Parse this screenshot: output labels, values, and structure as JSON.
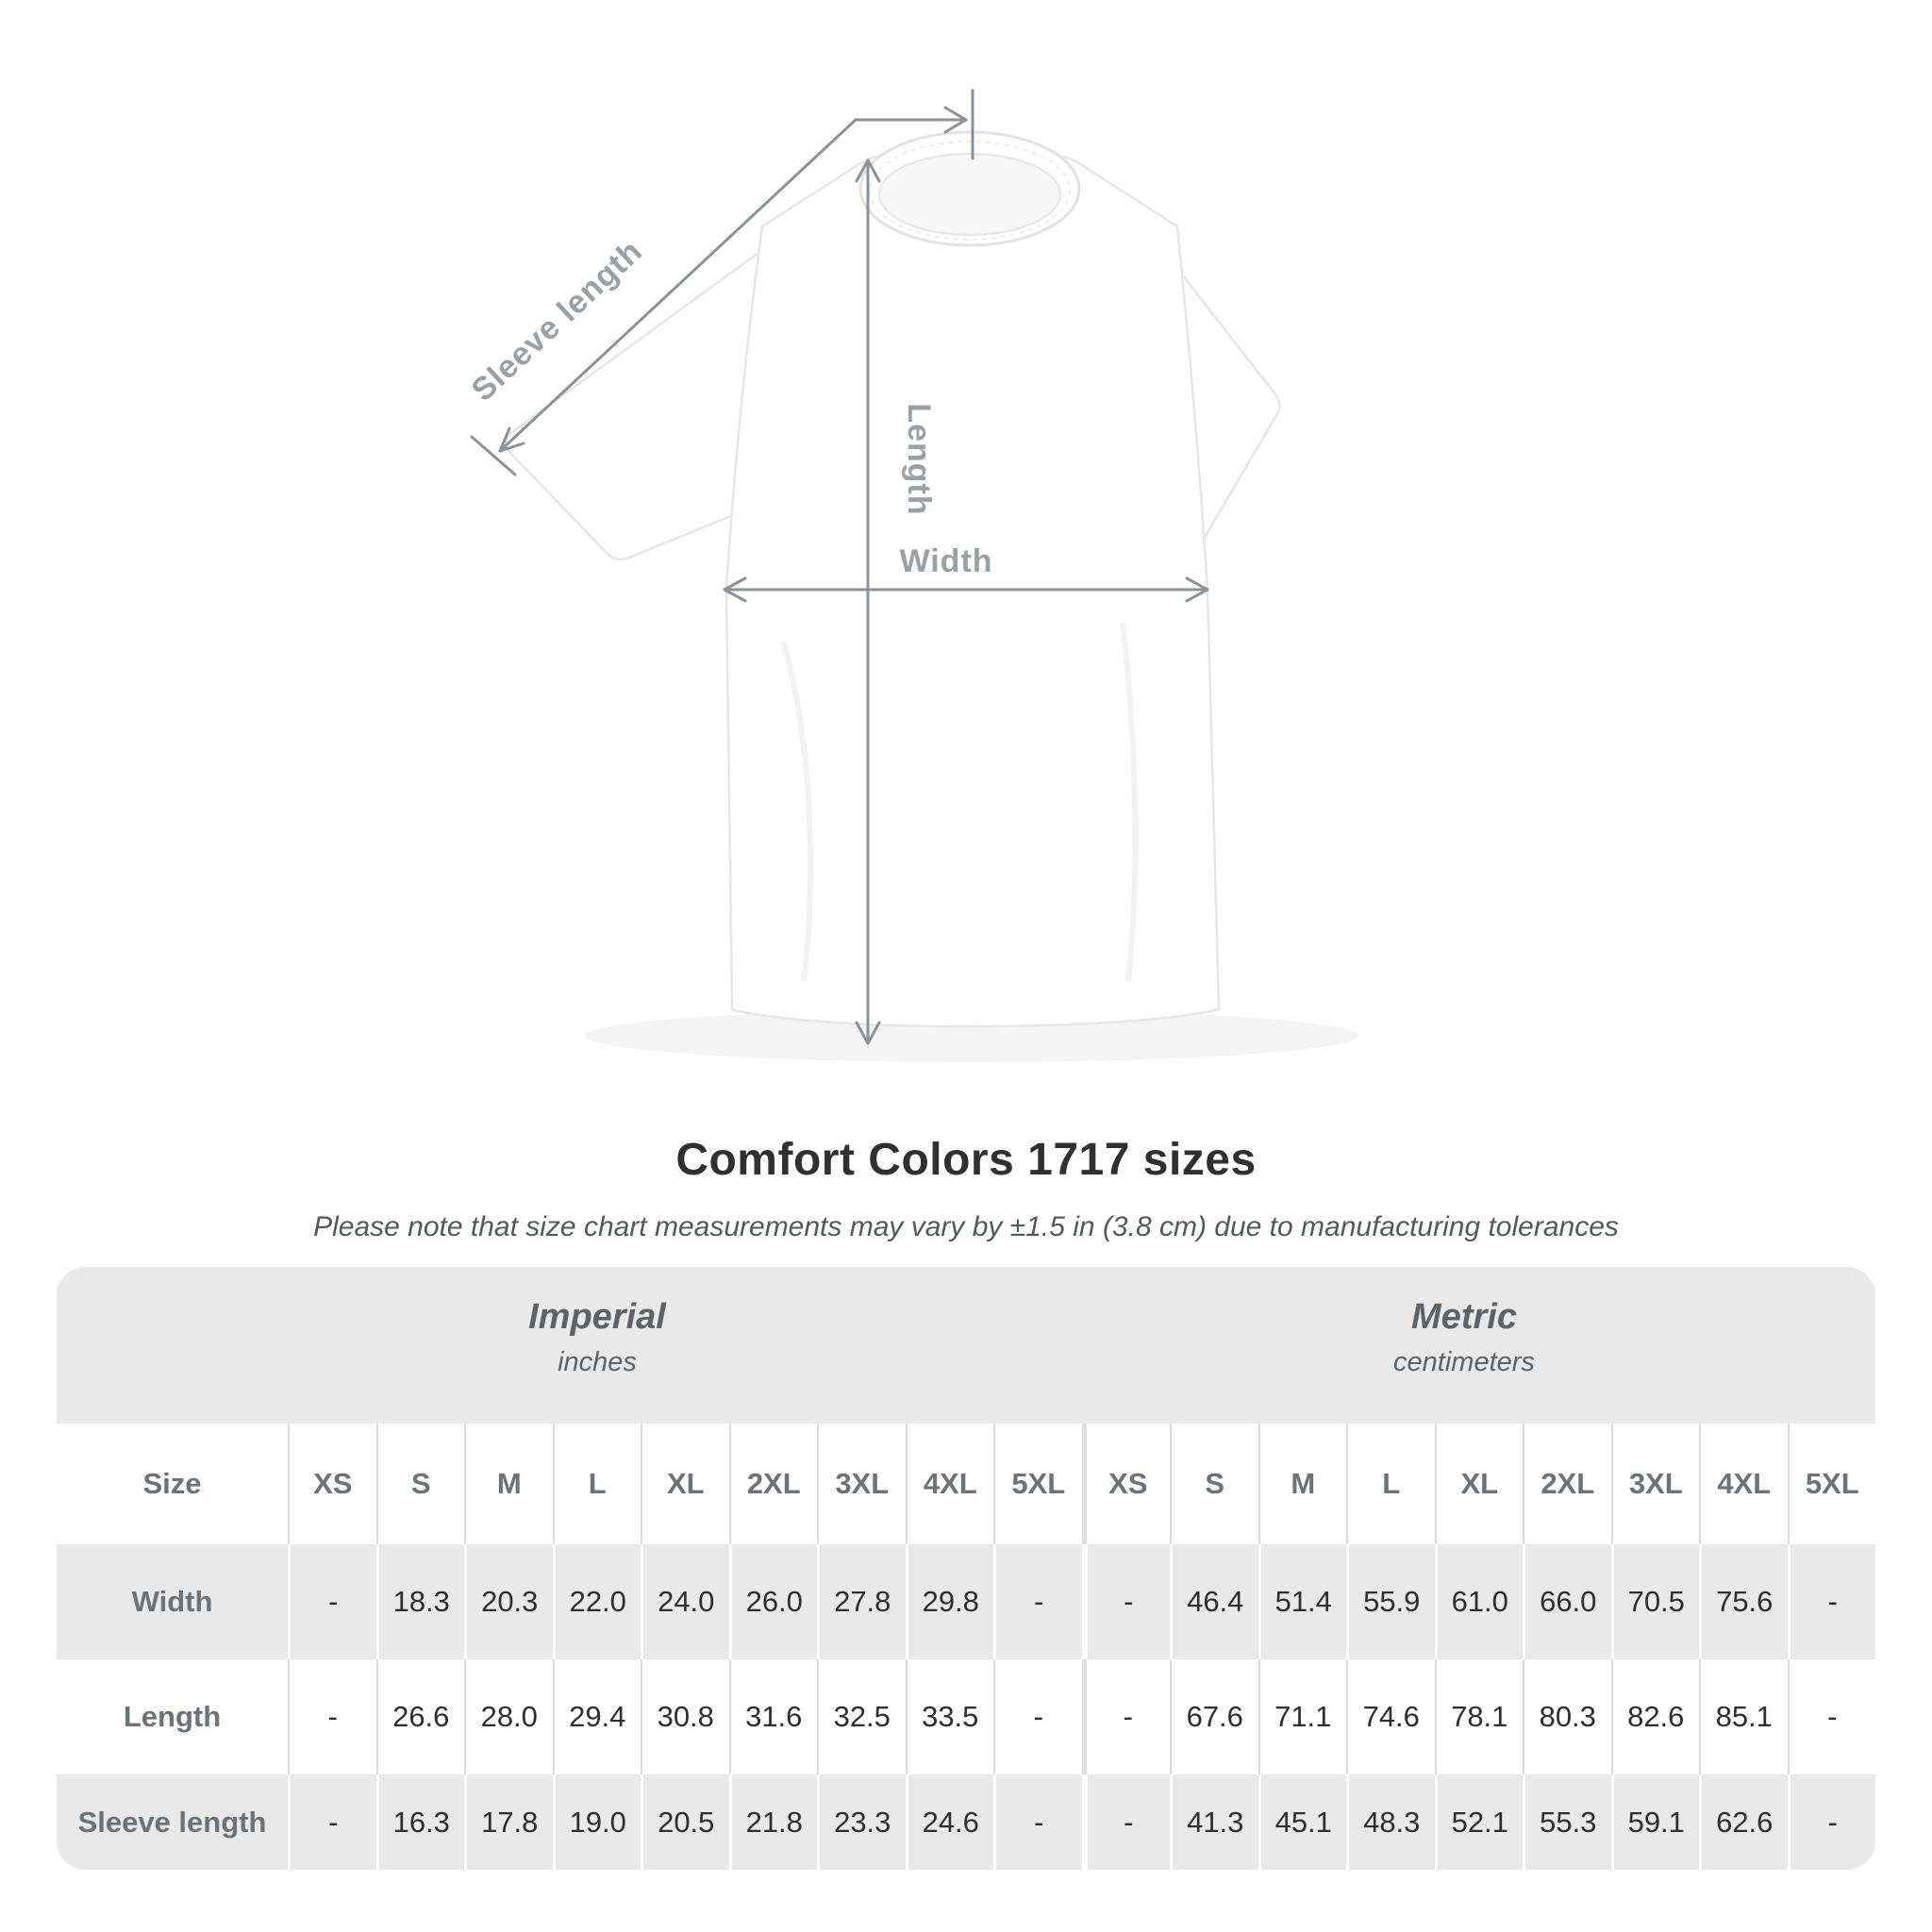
{
  "diagram": {
    "sleeve_length_label": "Sleeve length",
    "length_label": "Length",
    "width_label": "Width"
  },
  "title": "Comfort Colors 1717 sizes",
  "subtitle": "Please note that size chart measurements may vary by ±1.5 in (3.8 cm) due to manufacturing tolerances",
  "table": {
    "sections": [
      {
        "name": "Imperial",
        "unit": "inches"
      },
      {
        "name": "Metric",
        "unit": "centimeters"
      }
    ],
    "size_header": "Size",
    "sizes": [
      "XS",
      "S",
      "M",
      "L",
      "XL",
      "2XL",
      "3XL",
      "4XL",
      "5XL"
    ],
    "rows": [
      {
        "label": "Width",
        "imperial": [
          "-",
          "18.3",
          "20.3",
          "22.0",
          "24.0",
          "26.0",
          "27.8",
          "29.8",
          "-"
        ],
        "metric": [
          "-",
          "46.4",
          "51.4",
          "55.9",
          "61.0",
          "66.0",
          "70.5",
          "75.6",
          "-"
        ]
      },
      {
        "label": "Length",
        "imperial": [
          "-",
          "26.6",
          "28.0",
          "29.4",
          "30.8",
          "31.6",
          "32.5",
          "33.5",
          "-"
        ],
        "metric": [
          "-",
          "67.6",
          "71.1",
          "74.6",
          "78.1",
          "80.3",
          "82.6",
          "85.1",
          "-"
        ]
      },
      {
        "label": "Sleeve length",
        "imperial": [
          "-",
          "16.3",
          "17.8",
          "19.0",
          "20.5",
          "21.8",
          "23.3",
          "24.6",
          "-"
        ],
        "metric": [
          "-",
          "41.3",
          "45.1",
          "48.3",
          "52.1",
          "55.3",
          "59.1",
          "62.6",
          "-"
        ]
      }
    ]
  },
  "colors": {
    "measure_line": "#8d9297",
    "measure_label": "#9ba0a5",
    "table_band_gray": "#e9e9ea",
    "header_text_gray": "#6d7277",
    "value_text": "#2e2e2e",
    "title_text": "#303030"
  }
}
